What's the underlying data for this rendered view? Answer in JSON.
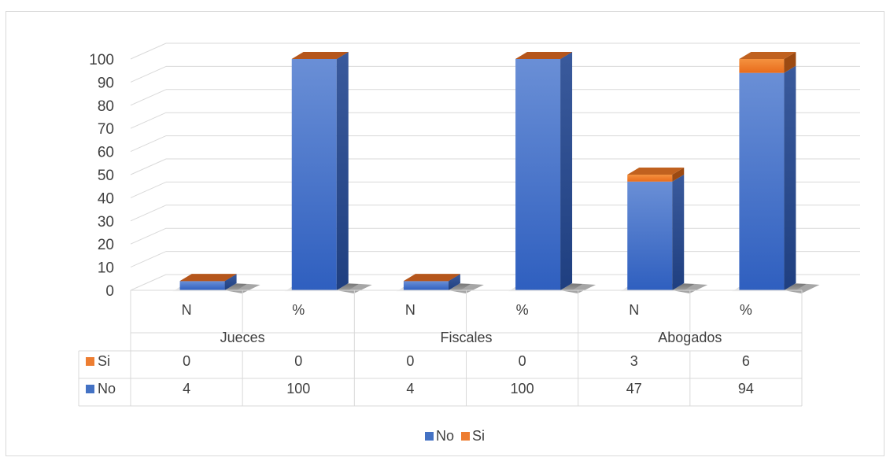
{
  "chart_data": {
    "type": "bar",
    "subtype": "3d-stacked-column-with-data-table",
    "groups": [
      "Jueces",
      "Fiscales",
      "Abogados"
    ],
    "subcategories": [
      "N",
      "%",
      "N",
      "%",
      "N",
      "%"
    ],
    "series": [
      {
        "name": "No",
        "color": "#4472c4",
        "values": [
          4,
          100,
          4,
          100,
          47,
          94
        ]
      },
      {
        "name": "Si",
        "color": "#ed7d31",
        "values": [
          0,
          0,
          0,
          0,
          3,
          6
        ]
      }
    ],
    "table_rows": [
      "Si",
      "No"
    ],
    "ylim": [
      0,
      100
    ],
    "yticks": [
      0,
      10,
      20,
      30,
      40,
      50,
      60,
      70,
      80,
      90,
      100
    ],
    "grid": true,
    "legend": {
      "position": "bottom",
      "entries": [
        "No",
        "Si"
      ]
    }
  }
}
